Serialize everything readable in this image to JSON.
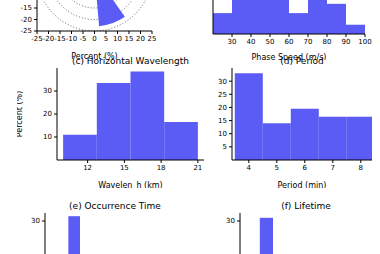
{
  "chart_data": [
    {
      "type": "polar",
      "xlabel": "Percent (%)",
      "xlim": [
        -25,
        25
      ],
      "ylim": [
        -25,
        25
      ],
      "xticks": [
        -25,
        -20,
        -15,
        -10,
        -5,
        0,
        5,
        10,
        15,
        20,
        25
      ],
      "yticks": [
        -25,
        -20,
        -15
      ],
      "sectors": [
        {
          "from": -85,
          "to": -55,
          "value": 23
        }
      ],
      "color": "#5b5bf5",
      "grid": true
    },
    {
      "type": "histogram",
      "xlabel": "Phase Speed (m/s)",
      "bins": [
        20,
        30,
        40,
        50,
        60,
        70,
        80,
        90,
        100
      ],
      "values": [
        9,
        16,
        16,
        16,
        9,
        16,
        13,
        4
      ],
      "xlim": [
        20,
        100
      ],
      "ylim": [
        0,
        25
      ],
      "xticks": [
        30,
        40,
        50,
        60,
        70,
        80,
        90,
        100
      ],
      "tick_labels": "x",
      "color": "#5b5bf5"
    },
    {
      "type": "histogram",
      "title": "(c) Horizontal Wavelength",
      "xlabel": "Wavelen_h (km)",
      "ylabel": "Percent (%)",
      "bins": [
        10,
        12.75,
        15.5,
        18.25,
        21
      ],
      "values": [
        11,
        33.5,
        38.5,
        16.5
      ],
      "xlim": [
        9.5,
        21.5
      ],
      "ylim": [
        0,
        40
      ],
      "xticks": [
        12,
        15,
        18,
        21
      ],
      "yticks": [
        10,
        20,
        30
      ],
      "color": "#5b5bf5"
    },
    {
      "type": "histogram",
      "title": "(d) Period",
      "xlabel": "Period (min)",
      "bins": [
        3.5,
        4.5,
        5.5,
        6.5,
        7.5,
        8.5
      ],
      "values": [
        33,
        14,
        19.5,
        16.5,
        16.5
      ],
      "xlim": [
        3.4,
        8.4
      ],
      "ylim": [
        0,
        35
      ],
      "xticks": [
        4,
        5,
        6,
        7,
        8
      ],
      "yticks": [
        5,
        10,
        15,
        20,
        25,
        30
      ],
      "color": "#5b5bf5"
    },
    {
      "type": "histogram",
      "title": "(e) Occurrence Time",
      "bins": [
        4,
        6
      ],
      "values": [
        33
      ],
      "xlim": [
        0,
        24
      ],
      "ylim": [
        0,
        35
      ],
      "yticks": [
        30
      ],
      "tick_labels": "y",
      "color": "#5b5bf5"
    },
    {
      "type": "histogram",
      "title": "(f) Lifetime",
      "bins": [
        1.5,
        2.5
      ],
      "values": [
        32
      ],
      "xlim": [
        0,
        10
      ],
      "ylim": [
        0,
        35
      ],
      "yticks": [
        30
      ],
      "tick_labels": "y",
      "color": "#5b5bf5"
    }
  ]
}
